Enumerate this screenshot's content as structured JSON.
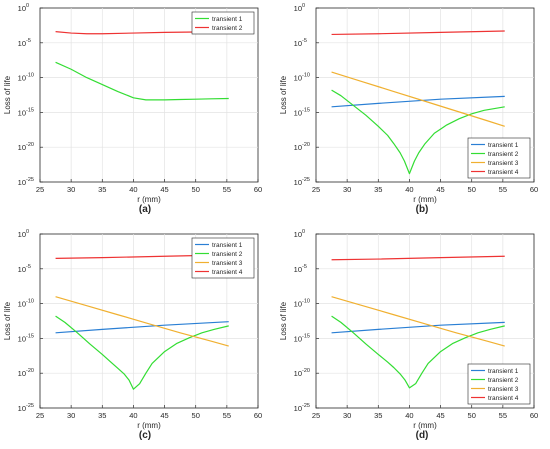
{
  "chart_data": [
    {
      "type": "line",
      "panel_label": "(a)",
      "xlabel": "r (mm)",
      "ylabel": "Loss of life",
      "xlim": [
        25,
        60
      ],
      "ylim_exponent": [
        -25,
        0
      ],
      "yscale": "log",
      "grid": true,
      "legend_position": "top-right",
      "x_ticks": [
        "25",
        "30",
        "35",
        "40",
        "45",
        "50",
        "55",
        "60"
      ],
      "y_ticks": [
        {
          "base": "10",
          "exp": "0"
        },
        {
          "base": "10",
          "exp": "-5"
        },
        {
          "base": "10",
          "exp": "-10"
        },
        {
          "base": "10",
          "exp": "-15"
        },
        {
          "base": "10",
          "exp": "-20"
        },
        {
          "base": "10",
          "exp": "-25"
        }
      ],
      "series": [
        {
          "name": "transient 1",
          "color": "#33dd33",
          "x": [
            27.5,
            30,
            32.5,
            35,
            37.5,
            40,
            42,
            45,
            47.5,
            50,
            52.5,
            55.3
          ],
          "log10_y": [
            -7.8,
            -8.8,
            -10.0,
            -11.0,
            -12.0,
            -12.9,
            -13.2,
            -13.2,
            -13.15,
            -13.1,
            -13.05,
            -13.0
          ]
        },
        {
          "name": "transient 2",
          "color": "#ee3333",
          "x": [
            27.5,
            30,
            32.5,
            35,
            40,
            45,
            50,
            55.3
          ],
          "log10_y": [
            -3.4,
            -3.6,
            -3.7,
            -3.7,
            -3.6,
            -3.5,
            -3.45,
            -3.4
          ]
        }
      ]
    },
    {
      "type": "line",
      "panel_label": "(b)",
      "xlabel": "r (mm)",
      "ylabel": "Loss of life",
      "xlim": [
        25,
        60
      ],
      "ylim_exponent": [
        -25,
        0
      ],
      "yscale": "log",
      "grid": true,
      "legend_position": "bottom-right",
      "x_ticks": [
        "25",
        "30",
        "35",
        "40",
        "45",
        "50",
        "55",
        "60"
      ],
      "y_ticks": [
        {
          "base": "10",
          "exp": "0"
        },
        {
          "base": "10",
          "exp": "-5"
        },
        {
          "base": "10",
          "exp": "-10"
        },
        {
          "base": "10",
          "exp": "-15"
        },
        {
          "base": "10",
          "exp": "-20"
        },
        {
          "base": "10",
          "exp": "-25"
        }
      ],
      "series": [
        {
          "name": "transient 1",
          "color": "#2a7fd4",
          "x": [
            27.5,
            35,
            45,
            55.3
          ],
          "log10_y": [
            -14.2,
            -13.7,
            -13.1,
            -12.7
          ]
        },
        {
          "name": "transient 2",
          "color": "#33dd33",
          "x": [
            27.5,
            29,
            31,
            33,
            35,
            36.5,
            37.5,
            38.5,
            39.2,
            40,
            40.8,
            41.5,
            42.5,
            44,
            46,
            48,
            50,
            52,
            55.3
          ],
          "log10_y": [
            -11.8,
            -12.6,
            -14.0,
            -15.4,
            -17.0,
            -18.3,
            -19.5,
            -20.8,
            -22.0,
            -23.8,
            -22.0,
            -20.8,
            -19.5,
            -18.0,
            -16.8,
            -15.9,
            -15.2,
            -14.7,
            -14.2
          ]
        },
        {
          "name": "transient 3",
          "color": "#f0b030",
          "x": [
            27.5,
            32.5,
            37.5,
            42.5,
            47.5,
            52.5,
            55.3
          ],
          "log10_y": [
            -9.2,
            -10.6,
            -12.0,
            -13.4,
            -14.8,
            -16.2,
            -17.0
          ]
        },
        {
          "name": "transient 4",
          "color": "#ee3333",
          "x": [
            27.5,
            35,
            45,
            55.3
          ],
          "log10_y": [
            -3.8,
            -3.7,
            -3.5,
            -3.3
          ]
        }
      ]
    },
    {
      "type": "line",
      "panel_label": "(c)",
      "xlabel": "r (mm)",
      "ylabel": "Loss of life",
      "xlim": [
        25,
        60
      ],
      "ylim_exponent": [
        -25,
        0
      ],
      "yscale": "log",
      "grid": true,
      "legend_position": "top-right",
      "x_ticks": [
        "25",
        "30",
        "35",
        "40",
        "45",
        "50",
        "55",
        "60"
      ],
      "y_ticks": [
        {
          "base": "10",
          "exp": "0"
        },
        {
          "base": "10",
          "exp": "-5"
        },
        {
          "base": "10",
          "exp": "-10"
        },
        {
          "base": "10",
          "exp": "-15"
        },
        {
          "base": "10",
          "exp": "-20"
        },
        {
          "base": "10",
          "exp": "-25"
        }
      ],
      "series": [
        {
          "name": "transient 1",
          "color": "#2a7fd4",
          "x": [
            27.5,
            35,
            45,
            55.3
          ],
          "log10_y": [
            -14.2,
            -13.7,
            -13.1,
            -12.6
          ]
        },
        {
          "name": "transient 2",
          "color": "#33dd33",
          "x": [
            27.5,
            29,
            31,
            33,
            35,
            36.5,
            37.5,
            38.5,
            39.3,
            40,
            41,
            42,
            43,
            45,
            47,
            49,
            51,
            53,
            55.3
          ],
          "log10_y": [
            -11.8,
            -12.7,
            -14.2,
            -15.8,
            -17.3,
            -18.5,
            -19.3,
            -20.1,
            -21.0,
            -22.3,
            -21.5,
            -20.0,
            -18.6,
            -16.9,
            -15.7,
            -14.9,
            -14.2,
            -13.7,
            -13.2
          ]
        },
        {
          "name": "transient 3",
          "color": "#f0b030",
          "x": [
            27.5,
            32.5,
            37.5,
            42.5,
            47.5,
            52.5,
            55.3
          ],
          "log10_y": [
            -9.0,
            -10.3,
            -11.6,
            -12.9,
            -14.2,
            -15.4,
            -16.1
          ]
        },
        {
          "name": "transient 4",
          "color": "#ee3333",
          "x": [
            27.5,
            35,
            45,
            55.3
          ],
          "log10_y": [
            -3.5,
            -3.4,
            -3.2,
            -3.0
          ]
        }
      ]
    },
    {
      "type": "line",
      "panel_label": "(d)",
      "xlabel": "r (mm)",
      "ylabel": "Loss of life",
      "xlim": [
        25,
        60
      ],
      "ylim_exponent": [
        -25,
        0
      ],
      "yscale": "log",
      "grid": true,
      "legend_position": "bottom-right",
      "x_ticks": [
        "25",
        "30",
        "35",
        "40",
        "45",
        "50",
        "55",
        "60"
      ],
      "y_ticks": [
        {
          "base": "10",
          "exp": "0"
        },
        {
          "base": "10",
          "exp": "-5"
        },
        {
          "base": "10",
          "exp": "-10"
        },
        {
          "base": "10",
          "exp": "-15"
        },
        {
          "base": "10",
          "exp": "-20"
        },
        {
          "base": "10",
          "exp": "-25"
        }
      ],
      "series": [
        {
          "name": "transient 1",
          "color": "#2a7fd4",
          "x": [
            27.5,
            35,
            45,
            55.3
          ],
          "log10_y": [
            -14.2,
            -13.7,
            -13.1,
            -12.7
          ]
        },
        {
          "name": "transient 2",
          "color": "#33dd33",
          "x": [
            27.5,
            29,
            31,
            33,
            35,
            36.5,
            37.5,
            38.5,
            39.3,
            40,
            41,
            42,
            43,
            45,
            47,
            49,
            51,
            53,
            55.3
          ],
          "log10_y": [
            -11.8,
            -12.7,
            -14.2,
            -15.8,
            -17.3,
            -18.4,
            -19.2,
            -20.1,
            -21.0,
            -22.1,
            -21.5,
            -20.0,
            -18.6,
            -16.9,
            -15.7,
            -14.9,
            -14.2,
            -13.7,
            -13.2
          ]
        },
        {
          "name": "transient 3",
          "color": "#f0b030",
          "x": [
            27.5,
            32.5,
            37.5,
            42.5,
            47.5,
            52.5,
            55.3
          ],
          "log10_y": [
            -9.0,
            -10.3,
            -11.6,
            -12.9,
            -14.2,
            -15.4,
            -16.1
          ]
        },
        {
          "name": "transient 4",
          "color": "#ee3333",
          "x": [
            27.5,
            35,
            45,
            55.3
          ],
          "log10_y": [
            -3.7,
            -3.6,
            -3.4,
            -3.2
          ]
        }
      ]
    }
  ]
}
